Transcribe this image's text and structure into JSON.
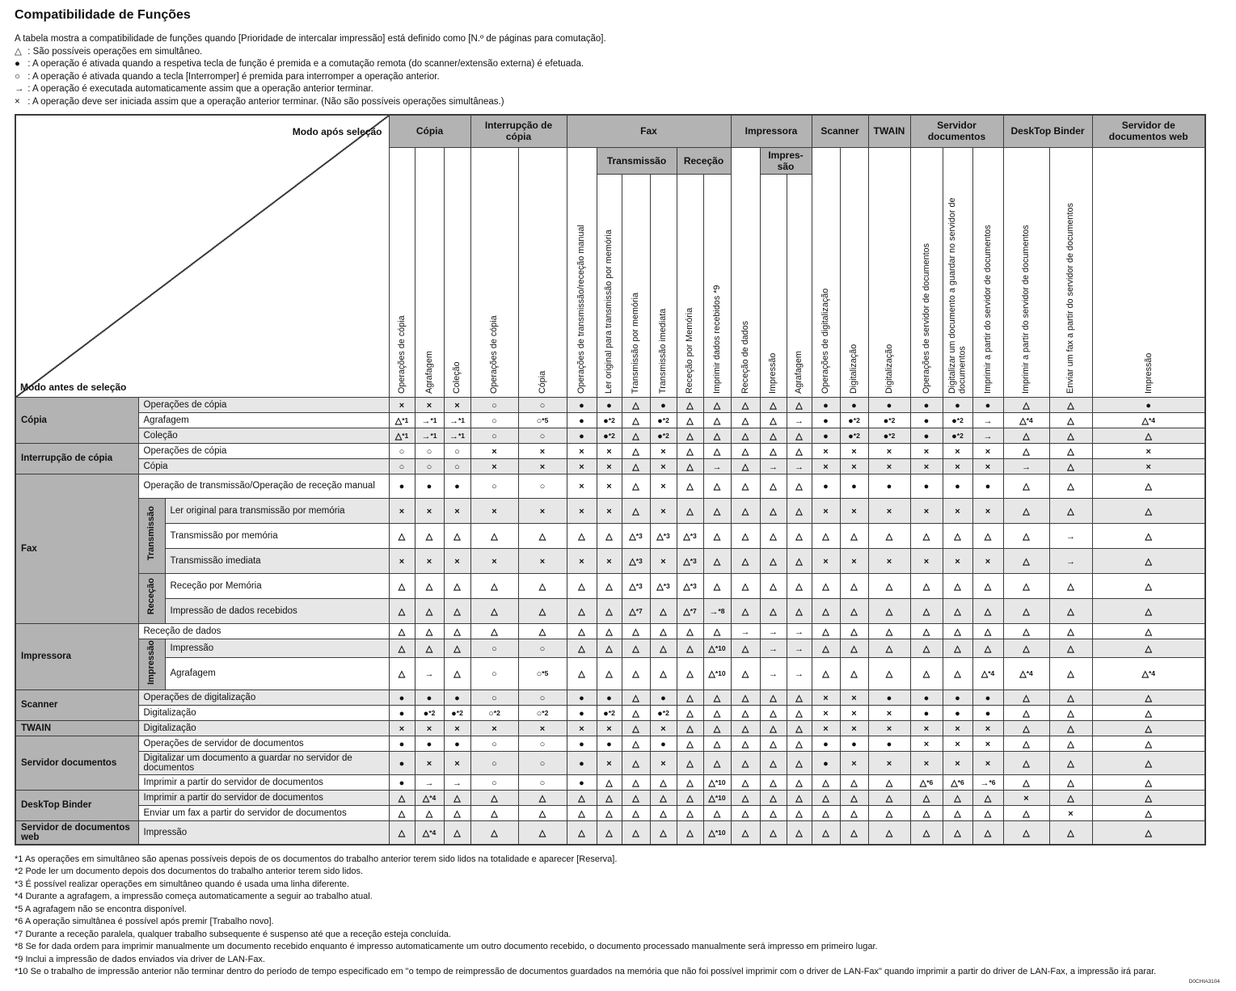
{
  "page": {
    "title": "Compatibilidade de Funções",
    "intro": "A tabela mostra a compatibilidade de funções quando [Prioridade de intercalar impressão] está definido como [N.º de páginas para comutação].",
    "legend": [
      {
        "symbol": "△",
        "text": "São possíveis operações em simultâneo."
      },
      {
        "symbol": "●",
        "text": "A operação é ativada quando a respetiva tecla de função é premida e a comutação remota (do scanner/extensão externa) é efetuada."
      },
      {
        "symbol": "○",
        "text": "A operação é ativada quando a tecla [Interromper] é premida para interromper a operação anterior."
      },
      {
        "symbol": "→",
        "text": "A operação é executada automaticamente assim que a operação anterior terminar."
      },
      {
        "symbol": "×",
        "text": "A operação deve ser iniciada assim que a operação anterior terminar. (Não são possíveis operações simultâneas.)"
      }
    ],
    "doc_code": "D0CHIA3104"
  },
  "matrix": {
    "corner": {
      "top_right": "Modo após seleção",
      "bottom_left": "Modo antes de seleção"
    },
    "columns": [
      {
        "group": "Cópia",
        "sub": null,
        "label": "Operações de cópia"
      },
      {
        "group": "Cópia",
        "sub": null,
        "label": "Agrafagem"
      },
      {
        "group": "Cópia",
        "sub": null,
        "label": "Coleção"
      },
      {
        "group": "Interrupção de cópia",
        "sub": null,
        "label": "Operações de cópia"
      },
      {
        "group": "Interrupção de cópia",
        "sub": null,
        "label": "Cópia"
      },
      {
        "group": "Fax",
        "sub": null,
        "label": "Operações de transmissão/receção manual"
      },
      {
        "group": "Fax",
        "sub": "Transmissão",
        "label": "Ler original para transmissão por memória"
      },
      {
        "group": "Fax",
        "sub": "Transmissão",
        "label": "Transmissão por memória"
      },
      {
        "group": "Fax",
        "sub": "Transmissão",
        "label": "Transmissão imediata"
      },
      {
        "group": "Fax",
        "sub": "Receção",
        "label": "Receção por Memória"
      },
      {
        "group": "Fax",
        "sub": "Receção",
        "label": "Imprimir dados recebidos *9"
      },
      {
        "group": "Impressora",
        "sub": null,
        "label": "Receção de dados"
      },
      {
        "group": "Impressora",
        "sub": "Impres-são",
        "label": "Impressão"
      },
      {
        "group": "Impressora",
        "sub": "Impres-são",
        "label": "Agrafagem"
      },
      {
        "group": "Scanner",
        "sub": null,
        "label": "Operações de digitalização"
      },
      {
        "group": "Scanner",
        "sub": null,
        "label": "Digitalização"
      },
      {
        "group": "TWAIN",
        "sub": null,
        "label": "Digitalização"
      },
      {
        "group": "Servidor documentos",
        "sub": null,
        "label": "Operações de servidor de documentos"
      },
      {
        "group": "Servidor documentos",
        "sub": null,
        "label": "Digitalizar um documento a guardar no servidor de documentos"
      },
      {
        "group": "Servidor documentos",
        "sub": null,
        "label": "Imprimir a partir do servidor de documentos"
      },
      {
        "group": "DeskTop Binder",
        "sub": null,
        "label": "Imprimir a partir do servidor de documentos"
      },
      {
        "group": "DeskTop Binder",
        "sub": null,
        "label": "Enviar um fax a partir do servidor de documentos"
      },
      {
        "group": "Servidor de documentos web",
        "sub": null,
        "label": "Impressão"
      }
    ],
    "rows": [
      {
        "group": "Cópia",
        "sub": null,
        "label": "Operações de cópia",
        "cells": [
          "×",
          "×",
          "×",
          "○",
          "○",
          "●",
          "●",
          "△",
          "●",
          "△",
          "△",
          "△",
          "△",
          "△",
          "●",
          "●",
          "●",
          "●",
          "●",
          "●",
          "△",
          "△",
          "●"
        ]
      },
      {
        "group": "Cópia",
        "sub": null,
        "label": "Agrafagem",
        "cells": [
          "△*1",
          "→*1",
          "→*1",
          "○",
          "○*5",
          "●",
          "●*2",
          "△",
          "●*2",
          "△",
          "△",
          "△",
          "△",
          "→",
          "●",
          "●*2",
          "●*2",
          "●",
          "●*2",
          "→",
          "△*4",
          "△",
          "△*4"
        ]
      },
      {
        "group": "Cópia",
        "sub": null,
        "label": "Coleção",
        "cells": [
          "△*1",
          "→*1",
          "→*1",
          "○",
          "○",
          "●",
          "●*2",
          "△",
          "●*2",
          "△",
          "△",
          "△",
          "△",
          "△",
          "●",
          "●*2",
          "●*2",
          "●",
          "●*2",
          "→",
          "△",
          "△",
          "△"
        ]
      },
      {
        "group": "Interrupção de cópia",
        "sub": null,
        "label": "Operações de cópia",
        "cells": [
          "○",
          "○",
          "○",
          "×",
          "×",
          "×",
          "×",
          "△",
          "×",
          "△",
          "△",
          "△",
          "△",
          "△",
          "×",
          "×",
          "×",
          "×",
          "×",
          "×",
          "△",
          "△",
          "×"
        ]
      },
      {
        "group": "Interrupção de cópia",
        "sub": null,
        "label": "Cópia",
        "cells": [
          "○",
          "○",
          "○",
          "×",
          "×",
          "×",
          "×",
          "△",
          "×",
          "△",
          "→",
          "△",
          "→",
          "→",
          "×",
          "×",
          "×",
          "×",
          "×",
          "×",
          "→",
          "△",
          "×"
        ]
      },
      {
        "group": "Fax",
        "sub": null,
        "label": "Operação de transmissão/Operação de receção manual",
        "cells": [
          "●",
          "●",
          "●",
          "○",
          "○",
          "×",
          "×",
          "△",
          "×",
          "△",
          "△",
          "△",
          "△",
          "△",
          "●",
          "●",
          "●",
          "●",
          "●",
          "●",
          "△",
          "△",
          "△"
        ]
      },
      {
        "group": "Fax",
        "sub": "Transmissão",
        "label": "Ler original para transmissão por memória",
        "cells": [
          "×",
          "×",
          "×",
          "×",
          "×",
          "×",
          "×",
          "△",
          "×",
          "△",
          "△",
          "△",
          "△",
          "△",
          "×",
          "×",
          "×",
          "×",
          "×",
          "×",
          "△",
          "△",
          "△"
        ]
      },
      {
        "group": "Fax",
        "sub": "Transmissão",
        "label": "Transmissão por memória",
        "cells": [
          "△",
          "△",
          "△",
          "△",
          "△",
          "△",
          "△",
          "△*3",
          "△*3",
          "△*3",
          "△",
          "△",
          "△",
          "△",
          "△",
          "△",
          "△",
          "△",
          "△",
          "△",
          "△",
          "→",
          "△"
        ]
      },
      {
        "group": "Fax",
        "sub": "Transmissão",
        "label": "Transmissão imediata",
        "cells": [
          "×",
          "×",
          "×",
          "×",
          "×",
          "×",
          "×",
          "△*3",
          "×",
          "△*3",
          "△",
          "△",
          "△",
          "△",
          "×",
          "×",
          "×",
          "×",
          "×",
          "×",
          "△",
          "→",
          "△"
        ]
      },
      {
        "group": "Fax",
        "sub": "Receção",
        "label": "Receção por Memória",
        "cells": [
          "△",
          "△",
          "△",
          "△",
          "△",
          "△",
          "△",
          "△*3",
          "△*3",
          "△*3",
          "△",
          "△",
          "△",
          "△",
          "△",
          "△",
          "△",
          "△",
          "△",
          "△",
          "△",
          "△",
          "△"
        ]
      },
      {
        "group": "Fax",
        "sub": "Receção",
        "label": "Impressão de dados recebidos",
        "cells": [
          "△",
          "△",
          "△",
          "△",
          "△",
          "△",
          "△",
          "△*7",
          "△",
          "△*7",
          "→*8",
          "△",
          "△",
          "△",
          "△",
          "△",
          "△",
          "△",
          "△",
          "△",
          "△",
          "△",
          "△"
        ]
      },
      {
        "group": "Impressora",
        "sub": null,
        "label": "Receção de dados",
        "cells": [
          "△",
          "△",
          "△",
          "△",
          "△",
          "△",
          "△",
          "△",
          "△",
          "△",
          "△",
          "→",
          "→",
          "→",
          "△",
          "△",
          "△",
          "△",
          "△",
          "△",
          "△",
          "△",
          "△"
        ]
      },
      {
        "group": "Impressora",
        "sub": "Impressão",
        "label": "Impressão",
        "cells": [
          "△",
          "△",
          "△",
          "○",
          "○",
          "△",
          "△",
          "△",
          "△",
          "△",
          "△*10",
          "△",
          "→",
          "→",
          "△",
          "△",
          "△",
          "△",
          "△",
          "△",
          "△",
          "△",
          "△"
        ]
      },
      {
        "group": "Impressora",
        "sub": "Impressão",
        "label": "Agrafagem",
        "cells": [
          "△",
          "→",
          "△",
          "○",
          "○*5",
          "△",
          "△",
          "△",
          "△",
          "△",
          "△*10",
          "△",
          "→",
          "→",
          "△",
          "△",
          "△",
          "△",
          "△",
          "△*4",
          "△*4",
          "△",
          "△*4"
        ]
      },
      {
        "group": "Scanner",
        "sub": null,
        "label": "Operações de digitalização",
        "cells": [
          "●",
          "●",
          "●",
          "○",
          "○",
          "●",
          "●",
          "△",
          "●",
          "△",
          "△",
          "△",
          "△",
          "△",
          "×",
          "×",
          "●",
          "●",
          "●",
          "●",
          "△",
          "△",
          "△"
        ]
      },
      {
        "group": "Scanner",
        "sub": null,
        "label": "Digitalização",
        "cells": [
          "●",
          "●*2",
          "●*2",
          "○*2",
          "○*2",
          "●",
          "●*2",
          "△",
          "●*2",
          "△",
          "△",
          "△",
          "△",
          "△",
          "×",
          "×",
          "×",
          "●",
          "●",
          "●",
          "△",
          "△",
          "△"
        ]
      },
      {
        "group": "TWAIN",
        "sub": null,
        "label": "Digitalização",
        "cells": [
          "×",
          "×",
          "×",
          "×",
          "×",
          "×",
          "×",
          "△",
          "×",
          "△",
          "△",
          "△",
          "△",
          "△",
          "×",
          "×",
          "×",
          "×",
          "×",
          "×",
          "△",
          "△",
          "△"
        ]
      },
      {
        "group": "Servidor documentos",
        "sub": null,
        "label": "Operações de servidor de documentos",
        "cells": [
          "●",
          "●",
          "●",
          "○",
          "○",
          "●",
          "●",
          "△",
          "●",
          "△",
          "△",
          "△",
          "△",
          "△",
          "●",
          "●",
          "●",
          "×",
          "×",
          "×",
          "△",
          "△",
          "△"
        ]
      },
      {
        "group": "Servidor documentos",
        "sub": null,
        "label": "Digitalizar um documento a guardar no servidor de documentos",
        "cells": [
          "●",
          "×",
          "×",
          "○",
          "○",
          "●",
          "×",
          "△",
          "×",
          "△",
          "△",
          "△",
          "△",
          "△",
          "●",
          "×",
          "×",
          "×",
          "×",
          "×",
          "△",
          "△",
          "△"
        ]
      },
      {
        "group": "Servidor documentos",
        "sub": null,
        "label": "Imprimir a partir do servidor de documentos",
        "cells": [
          "●",
          "→",
          "→",
          "○",
          "○",
          "●",
          "△",
          "△",
          "△",
          "△",
          "△*10",
          "△",
          "△",
          "△",
          "△",
          "△",
          "△",
          "△*6",
          "△*6",
          "→*6",
          "△",
          "△",
          "△"
        ]
      },
      {
        "group": "DeskTop Binder",
        "sub": null,
        "label": "Imprimir a partir do servidor de documentos",
        "cells": [
          "△",
          "△*4",
          "△",
          "△",
          "△",
          "△",
          "△",
          "△",
          "△",
          "△",
          "△*10",
          "△",
          "△",
          "△",
          "△",
          "△",
          "△",
          "△",
          "△",
          "△",
          "×",
          "△",
          "△"
        ]
      },
      {
        "group": "DeskTop Binder",
        "sub": null,
        "label": "Enviar um fax a partir do servidor de documentos",
        "cells": [
          "△",
          "△",
          "△",
          "△",
          "△",
          "△",
          "△",
          "△",
          "△",
          "△",
          "△",
          "△",
          "△",
          "△",
          "△",
          "△",
          "△",
          "△",
          "△",
          "△",
          "△",
          "×",
          "△"
        ]
      },
      {
        "group": "Servidor de documentos web",
        "sub": null,
        "label": "Impressão",
        "cells": [
          "△",
          "△*4",
          "△",
          "△",
          "△",
          "△",
          "△",
          "△",
          "△",
          "△",
          "△*10",
          "△",
          "△",
          "△",
          "△",
          "△",
          "△",
          "△",
          "△",
          "△",
          "△",
          "△",
          "△"
        ]
      }
    ]
  },
  "footnotes": [
    "*1 As operações em simultâneo são apenas possíveis depois de os documentos do trabalho anterior terem sido lidos na totalidade e aparecer [Reserva].",
    "*2 Pode ler um documento depois dos documentos do trabalho anterior terem sido lidos.",
    "*3 É possível realizar operações em simultâneo quando é usada uma linha diferente.",
    "*4 Durante a agrafagem, a impressão começa automaticamente a seguir ao trabalho atual.",
    "*5 A agrafagem não se encontra disponível.",
    "*6 A operação simultânea é possível após premir [Trabalho novo].",
    "*7 Durante a receção paralela, qualquer trabalho subsequente é suspenso até que a receção esteja concluída.",
    "*8 Se for dada ordem para imprimir manualmente um documento recebido enquanto é impresso automaticamente um outro documento recebido, o documento processado manualmente será impresso em primeiro lugar.",
    "*9 Inclui a impressão de dados enviados via driver de LAN-Fax.",
    "*10 Se o trabalho de impressão anterior não terminar dentro do período de tempo especificado em \"o tempo de reimpressão de documentos guardados na memória que não foi possível imprimir com o driver de LAN-Fax\" quando imprimir a partir do driver de LAN-Fax, a impressão irá parar."
  ]
}
